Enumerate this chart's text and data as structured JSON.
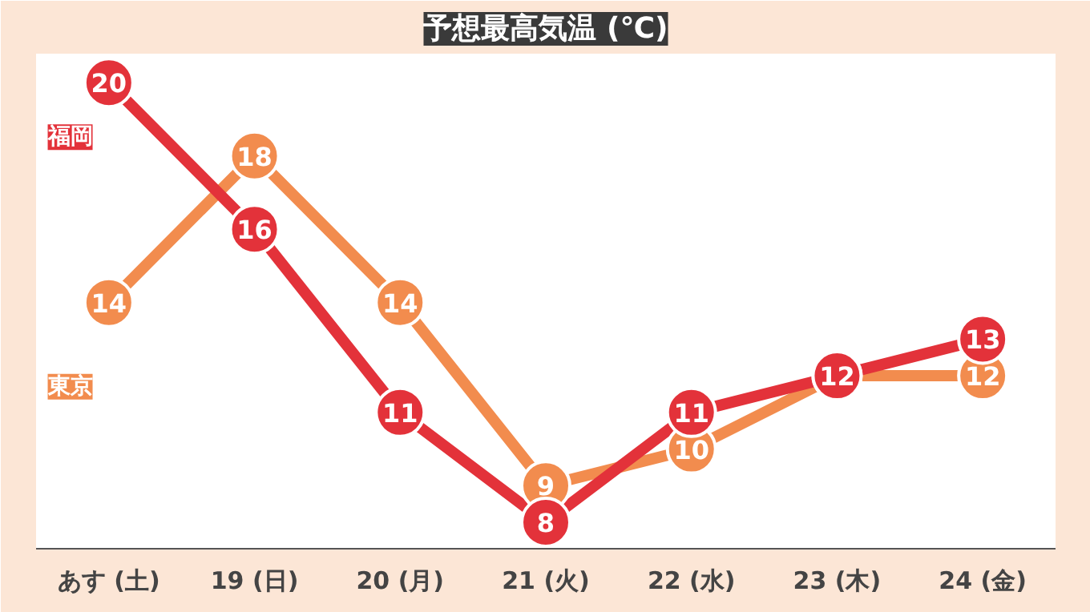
{
  "chart_data": {
    "type": "line",
    "title": "予想最高気温 (℃)",
    "categories": [
      "あす (土)",
      "19 (日)",
      "20 (月)",
      "21 (火)",
      "22 (水)",
      "23 (木)",
      "24 (金)"
    ],
    "series": [
      {
        "name": "東京",
        "color": "#f28c4e",
        "values": [
          14,
          18,
          14,
          9,
          10,
          12,
          12
        ],
        "value_labels": [
          "14",
          "18",
          "14",
          "9",
          "10",
          null,
          "12"
        ]
      },
      {
        "name": "福岡",
        "color": "#e3323a",
        "values": [
          20,
          16,
          11,
          8,
          11,
          12,
          13
        ]
      }
    ],
    "data_labels": true,
    "marker": "circle",
    "line_style": "solid",
    "grid": false,
    "legend": false,
    "tick_labels": "x"
  }
}
